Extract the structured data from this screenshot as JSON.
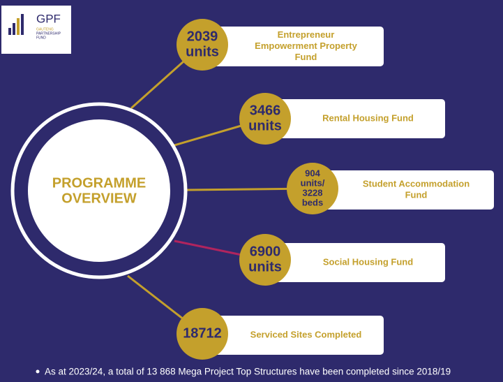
{
  "logo": {
    "title": "GPF",
    "subtitle_lines": [
      "GAUTENG",
      "PARTNERSHIP",
      "FUND"
    ]
  },
  "center": {
    "lines": [
      "PROGRAMME",
      "OVERVIEW"
    ]
  },
  "items": [
    {
      "badge_lines": [
        "2039",
        "units"
      ],
      "label_lines": [
        "Entrepreneur",
        "Empowerment Property",
        "Fund"
      ]
    },
    {
      "badge_lines": [
        "3466",
        "units"
      ],
      "label_lines": [
        "Rental Housing Fund"
      ]
    },
    {
      "badge_lines": [
        "904",
        "units/",
        "3228",
        "beds"
      ],
      "label_lines": [
        "Student Accommodation",
        "Fund"
      ]
    },
    {
      "badge_lines": [
        "6900",
        "units"
      ],
      "label_lines": [
        "Social Housing Fund"
      ]
    },
    {
      "badge_lines": [
        "18712"
      ],
      "label_lines": [
        "Serviced Sites Completed"
      ]
    }
  ],
  "footnote": "As at 2023/24, a total of 13 868 Mega Project Top Structures have been completed since 2018/19"
}
